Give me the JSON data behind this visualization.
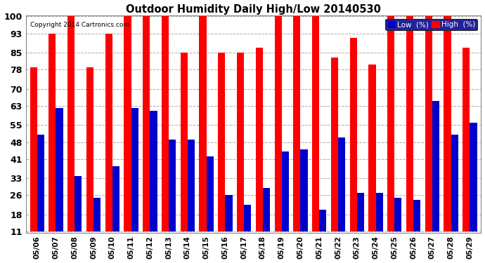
{
  "title": "Outdoor Humidity Daily High/Low 20140530",
  "copyright": "Copyright 2014 Cartronics.com",
  "dates": [
    "05/06",
    "05/07",
    "05/08",
    "05/09",
    "05/10",
    "05/11",
    "05/12",
    "05/13",
    "05/14",
    "05/15",
    "05/16",
    "05/17",
    "05/18",
    "05/19",
    "05/20",
    "05/21",
    "05/22",
    "05/23",
    "05/24",
    "05/25",
    "05/26",
    "05/27",
    "05/28",
    "05/29"
  ],
  "high": [
    79,
    93,
    100,
    79,
    93,
    100,
    100,
    100,
    85,
    100,
    85,
    85,
    87,
    100,
    100,
    100,
    83,
    91,
    80,
    100,
    100,
    100,
    100,
    87
  ],
  "low": [
    51,
    62,
    34,
    25,
    38,
    62,
    61,
    49,
    49,
    42,
    26,
    22,
    29,
    44,
    45,
    20,
    50,
    27,
    27,
    25,
    24,
    65,
    51,
    56
  ],
  "high_color": "#ff0000",
  "low_color": "#0000cc",
  "bg_color": "#ffffff",
  "grid_color": "#aaaaaa",
  "ymin": 11,
  "ymax": 100,
  "yticks": [
    11,
    18,
    26,
    33,
    41,
    48,
    55,
    63,
    70,
    78,
    85,
    93,
    100
  ],
  "bar_width": 0.38,
  "legend_low_label": "Low  (%)",
  "legend_high_label": "High  (%)"
}
